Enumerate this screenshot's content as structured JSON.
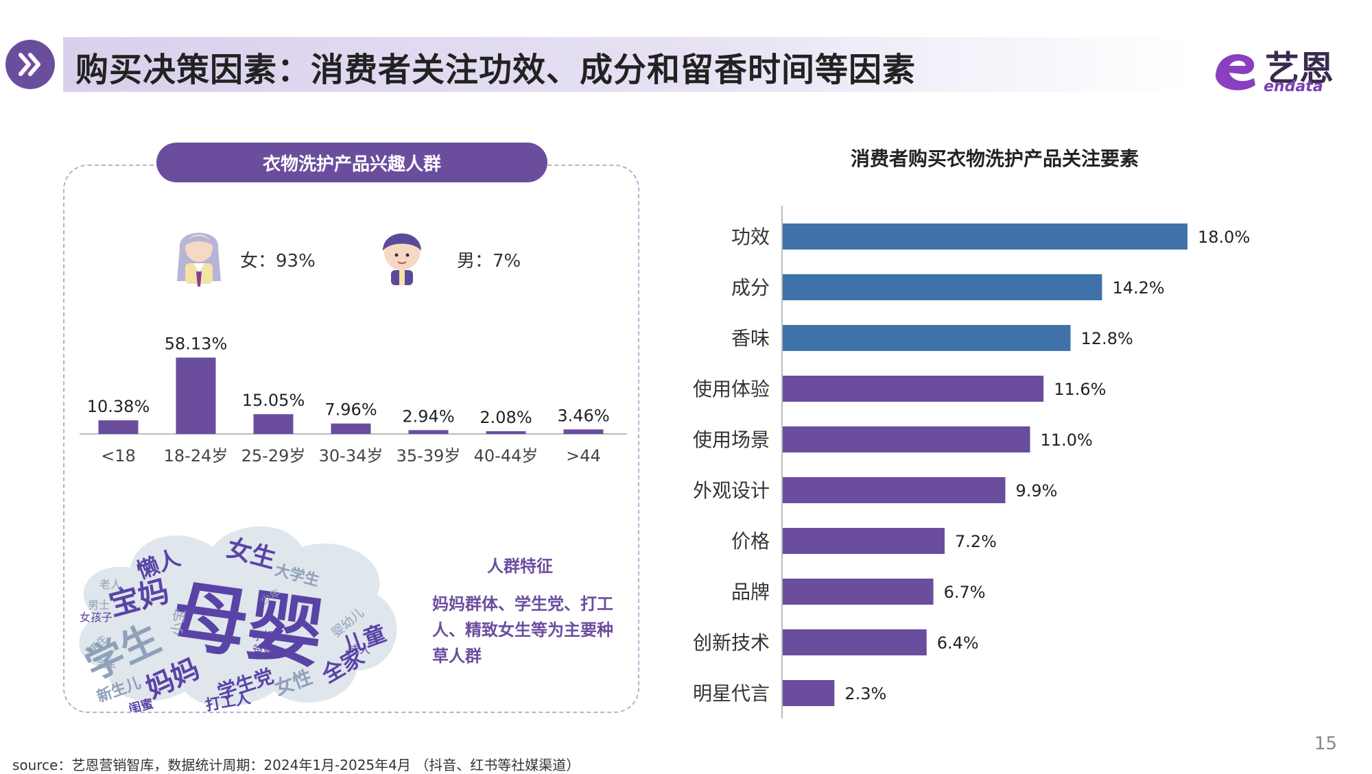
{
  "header": {
    "title": "购买决策因素：消费者关注功效、成分和留香时间等因素",
    "logo_cn": "艺恩",
    "logo_en": "endata"
  },
  "left_panel": {
    "pill_title": "衣物洗护产品兴趣人群",
    "female_label": "女：93%",
    "male_label": "男：7%",
    "wordcloud_main": "母婴",
    "wordcloud_words": [
      "学生",
      "宝妈",
      "女生",
      "懒人",
      "妈妈",
      "学生党",
      "女性",
      "全家",
      "儿童",
      "新生儿",
      "打工人",
      "闺蜜",
      "大学生",
      "婴幼儿",
      "小宝",
      "孕妇",
      "男士",
      "女孩子",
      "老人",
      "男生",
      "爸妈",
      "成人",
      "少年",
      "宝宝"
    ],
    "feature_title": "人群特征",
    "feature_text": "妈妈群体、学生党、打工人、精致女生等为主要种草人群"
  },
  "right_panel": {
    "title": "消费者购买衣物洗护产品关注要素"
  },
  "chart_data": [
    {
      "type": "bar",
      "orientation": "vertical",
      "title": "",
      "categories": [
        "<18",
        "18-24岁",
        "25-29岁",
        "30-34岁",
        "35-39岁",
        "40-44岁",
        ">44"
      ],
      "values": [
        10.38,
        58.13,
        15.05,
        7.96,
        2.94,
        2.08,
        3.46
      ],
      "value_labels": [
        "10.38%",
        "58.13%",
        "15.05%",
        "7.96%",
        "2.94%",
        "2.08%",
        "3.46%"
      ],
      "ylim": [
        0,
        60
      ],
      "grid": false,
      "color": "#6b4d9e"
    },
    {
      "type": "bar",
      "orientation": "horizontal",
      "title": "消费者购买衣物洗护产品关注要素",
      "categories": [
        "功效",
        "成分",
        "香味",
        "使用体验",
        "使用场景",
        "外观设计",
        "价格",
        "品牌",
        "创新技术",
        "明星代言"
      ],
      "values": [
        18.0,
        14.2,
        12.8,
        11.6,
        11.0,
        9.9,
        7.2,
        6.7,
        6.4,
        2.3
      ],
      "value_labels": [
        "18.0%",
        "14.2%",
        "12.8%",
        "11.6%",
        "11.0%",
        "9.9%",
        "7.2%",
        "6.7%",
        "6.4%",
        "2.3%"
      ],
      "xlim": [
        0,
        18
      ],
      "grid": false,
      "colors": [
        "#3f72a8",
        "#3f72a8",
        "#3f72a8",
        "#6b4d9e",
        "#6b4d9e",
        "#6b4d9e",
        "#6b4d9e",
        "#6b4d9e",
        "#6b4d9e",
        "#6b4d9e"
      ]
    }
  ],
  "footer": {
    "page_number": "15",
    "source": "source：艺恩营销智库，数据统计周期：2024年1月-2025年4月 （抖音、红书等社媒渠道）"
  }
}
